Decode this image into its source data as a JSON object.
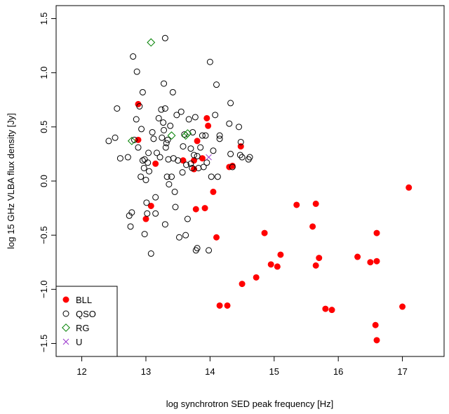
{
  "chart_data": {
    "type": "scatter",
    "title": "",
    "xlabel": "log synchrotron SED peak frequency [Hz]",
    "ylabel": "log 15 GHz VLBA flux density [Jy]",
    "xlim": [
      11.6,
      17.65
    ],
    "ylim": [
      -1.62,
      1.62
    ],
    "xticks": [
      12,
      13,
      14,
      15,
      16,
      17
    ],
    "yticks": [
      -1.5,
      -1.0,
      -0.5,
      0.0,
      0.5,
      1.0,
      1.5
    ],
    "xtick_labels": [
      "12",
      "13",
      "14",
      "15",
      "16",
      "17"
    ],
    "ytick_labels": [
      "−1.5",
      "−1.0",
      "−0.5",
      "0.0",
      "0.5",
      "1.0",
      "1.5"
    ],
    "grid": false,
    "legend_position": "bottom-left",
    "series": [
      {
        "name": "BLL",
        "marker": "filled-circle",
        "color": "#ff0000",
        "points": [
          [
            12.88,
            0.71
          ],
          [
            12.88,
            0.38
          ],
          [
            13.0,
            -0.35
          ],
          [
            13.08,
            -0.23
          ],
          [
            13.15,
            0.16
          ],
          [
            13.58,
            0.19
          ],
          [
            13.75,
            0.11
          ],
          [
            13.78,
            -0.26
          ],
          [
            13.8,
            0.37
          ],
          [
            13.92,
            -0.25
          ],
          [
            13.95,
            0.58
          ],
          [
            13.97,
            0.51
          ],
          [
            14.05,
            -0.1
          ],
          [
            14.1,
            -0.52
          ],
          [
            14.3,
            0.13
          ],
          [
            14.35,
            0.14
          ],
          [
            14.48,
            0.32
          ],
          [
            13.75,
            0.19
          ],
          [
            13.88,
            0.21
          ],
          [
            14.15,
            -1.15
          ],
          [
            14.27,
            -1.15
          ],
          [
            14.5,
            -0.95
          ],
          [
            14.72,
            -0.89
          ],
          [
            14.85,
            -0.48
          ],
          [
            14.95,
            -0.77
          ],
          [
            15.05,
            -0.79
          ],
          [
            15.1,
            -0.68
          ],
          [
            15.35,
            -0.22
          ],
          [
            15.6,
            -0.42
          ],
          [
            15.65,
            -0.21
          ],
          [
            15.65,
            -0.78
          ],
          [
            15.7,
            -0.71
          ],
          [
            15.8,
            -1.18
          ],
          [
            15.9,
            -1.19
          ],
          [
            16.3,
            -0.7
          ],
          [
            16.5,
            -0.75
          ],
          [
            16.6,
            -0.74
          ],
          [
            16.6,
            -0.48
          ],
          [
            16.58,
            -1.33
          ],
          [
            16.6,
            -1.47
          ],
          [
            17.0,
            -1.16
          ],
          [
            17.1,
            -0.06
          ]
        ]
      },
      {
        "name": "QSO",
        "marker": "open-circle",
        "color": "#000000",
        "points": [
          [
            12.42,
            0.37
          ],
          [
            12.52,
            0.4
          ],
          [
            12.55,
            0.67
          ],
          [
            12.6,
            0.21
          ],
          [
            12.72,
            0.22
          ],
          [
            12.74,
            -0.32
          ],
          [
            12.76,
            -0.42
          ],
          [
            12.78,
            -0.29
          ],
          [
            12.8,
            1.15
          ],
          [
            12.82,
            0.38
          ],
          [
            12.85,
            0.57
          ],
          [
            12.86,
            1.01
          ],
          [
            12.88,
            0.31
          ],
          [
            12.9,
            0.69
          ],
          [
            12.92,
            0.04
          ],
          [
            12.93,
            0.48
          ],
          [
            12.95,
            0.19
          ],
          [
            12.95,
            0.82
          ],
          [
            12.97,
            0.12
          ],
          [
            12.98,
            0.2
          ],
          [
            13.0,
            0.01
          ],
          [
            13.01,
            -0.2
          ],
          [
            13.02,
            -0.3
          ],
          [
            13.03,
            0.17
          ],
          [
            13.04,
            0.26
          ],
          [
            13.05,
            0.09
          ],
          [
            13.08,
            -0.67
          ],
          [
            13.1,
            0.45
          ],
          [
            13.12,
            0.39
          ],
          [
            13.15,
            -0.3
          ],
          [
            13.17,
            0.26
          ],
          [
            13.2,
            0.58
          ],
          [
            13.22,
            0.22
          ],
          [
            13.24,
            0.66
          ],
          [
            13.25,
            0.4
          ],
          [
            13.27,
            0.54
          ],
          [
            13.28,
            0.47
          ],
          [
            13.28,
            0.9
          ],
          [
            13.3,
            0.67
          ],
          [
            13.3,
            -0.4
          ],
          [
            13.3,
            1.32
          ],
          [
            13.31,
            0.31
          ],
          [
            13.32,
            0.35
          ],
          [
            13.33,
            0.04
          ],
          [
            13.34,
            0.38
          ],
          [
            13.35,
            0.2
          ],
          [
            13.36,
            -0.03
          ],
          [
            13.38,
            0.51
          ],
          [
            13.4,
            0.04
          ],
          [
            13.42,
            0.82
          ],
          [
            13.43,
            0.21
          ],
          [
            13.45,
            -0.1
          ],
          [
            13.48,
            0.61
          ],
          [
            13.5,
            0.19
          ],
          [
            13.52,
            -0.52
          ],
          [
            13.55,
            0.64
          ],
          [
            13.57,
            0.08
          ],
          [
            13.58,
            0.32
          ],
          [
            13.6,
            0.43
          ],
          [
            13.62,
            -0.5
          ],
          [
            13.63,
            0.15
          ],
          [
            13.65,
            -0.35
          ],
          [
            13.67,
            0.57
          ],
          [
            13.7,
            0.3
          ],
          [
            13.72,
            0.12
          ],
          [
            13.73,
            0.45
          ],
          [
            13.75,
            0.24
          ],
          [
            13.77,
            0.59
          ],
          [
            13.78,
            -0.64
          ],
          [
            13.8,
            -0.62
          ],
          [
            13.8,
            0.23
          ],
          [
            13.82,
            0.12
          ],
          [
            13.85,
            0.31
          ],
          [
            13.88,
            0.42
          ],
          [
            13.9,
            0.13
          ],
          [
            13.93,
            0.42
          ],
          [
            13.95,
            0.17
          ],
          [
            13.98,
            -0.64
          ],
          [
            14.0,
            1.1
          ],
          [
            14.02,
            0.04
          ],
          [
            14.05,
            0.28
          ],
          [
            14.08,
            0.61
          ],
          [
            14.1,
            0.89
          ],
          [
            14.12,
            0.04
          ],
          [
            14.15,
            0.42
          ],
          [
            14.15,
            0.39
          ],
          [
            14.3,
            0.53
          ],
          [
            14.32,
            0.72
          ],
          [
            14.32,
            0.25
          ],
          [
            14.35,
            0.13
          ],
          [
            14.45,
            0.5
          ],
          [
            14.47,
            0.24
          ],
          [
            14.48,
            0.36
          ],
          [
            14.5,
            0.22
          ],
          [
            14.6,
            0.2
          ],
          [
            14.62,
            0.22
          ],
          [
            13.46,
            -0.24
          ],
          [
            13.7,
            0.16
          ],
          [
            13.15,
            -0.15
          ],
          [
            12.98,
            -0.49
          ]
        ]
      },
      {
        "name": "RG",
        "marker": "open-diamond",
        "color": "#008000",
        "points": [
          [
            12.78,
            0.37
          ],
          [
            13.08,
            1.28
          ],
          [
            13.4,
            0.42
          ],
          [
            13.62,
            0.42
          ],
          [
            13.65,
            0.44
          ]
        ]
      },
      {
        "name": "U",
        "marker": "cross",
        "color": "#9933cc",
        "points": [
          [
            13.98,
            0.22
          ]
        ]
      }
    ]
  }
}
